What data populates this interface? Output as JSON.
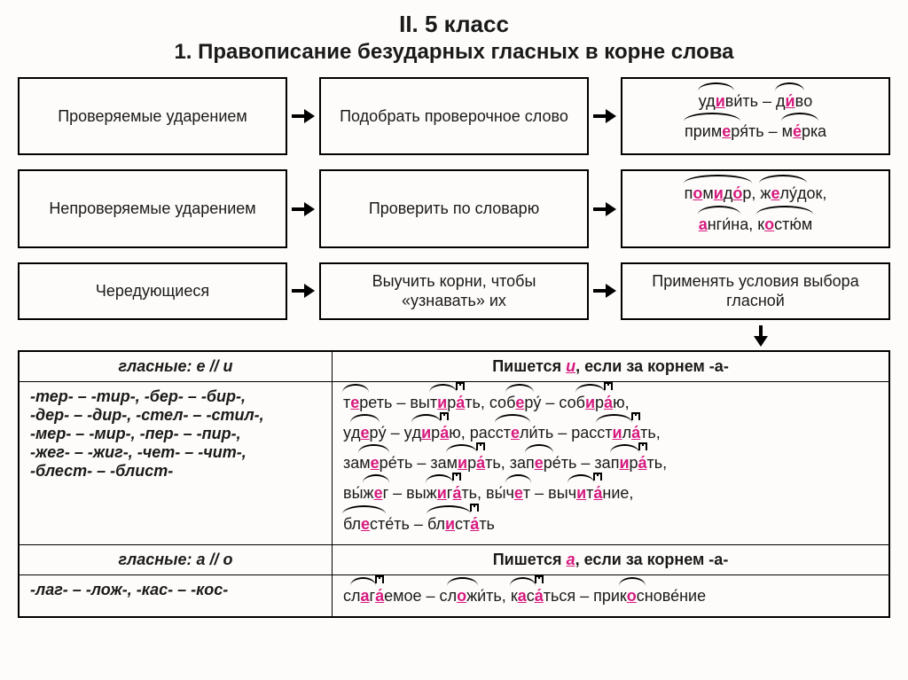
{
  "supertitle": "II.   5 класс",
  "title": "1. Правописание безударных гласных в корне слова",
  "rows": [
    {
      "c1": "Проверяемые ударением",
      "c2": "Подобрать проверочное слово"
    },
    {
      "c1": "Непроверяемые ударением",
      "c2": "Проверить по словарю"
    },
    {
      "c1": "Чередующиеся",
      "c2": "Выучить корни, чтобы «узнавать» их",
      "c3": "Применять условия выбора гласной"
    }
  ],
  "table": {
    "h1a": "гласные: е // и",
    "h1b_pre": "Пишется ",
    "h1b_mid": "и",
    "h1b_post": ", если за корнем -а-",
    "roots_ei": [
      "-тер- – -тир-,   -бер- – -бир-,",
      "-дер- – -дир-,   -стел- – -стил-,",
      "-мер- – -мир-,   -пер- – -пир-,",
      "-жег- – -жиг-,   -чет- – -чит-,",
      "-блест- – -блист-"
    ],
    "h2a": "гласные: а // о",
    "h2b_pre": "Пишется ",
    "h2b_mid": "а",
    "h2b_post": ", если за корнем -а-",
    "roots_ao": "-лаг- – -лож-, -кас- – -кос-"
  }
}
